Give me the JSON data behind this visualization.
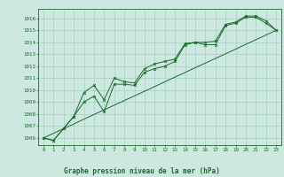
{
  "title": "Graphe pression niveau de la mer (hPa)",
  "background_color": "#cce8e0",
  "grid_color": "#9cc8bc",
  "line_color": "#1a6b2a",
  "x_values": [
    0,
    1,
    2,
    3,
    4,
    5,
    6,
    7,
    8,
    9,
    10,
    11,
    12,
    13,
    14,
    15,
    16,
    17,
    18,
    19,
    20,
    21,
    22,
    23
  ],
  "series1": [
    1006.0,
    1005.8,
    1006.8,
    1007.8,
    1009.8,
    1010.4,
    1009.2,
    1011.0,
    1010.7,
    1010.6,
    1011.8,
    1012.2,
    1012.4,
    1012.6,
    1013.9,
    1014.0,
    1014.0,
    1014.1,
    1015.5,
    1015.7,
    1016.2,
    1016.2,
    1015.8,
    1015.0
  ],
  "series2": [
    1006.0,
    1005.8,
    1006.8,
    1007.8,
    1009.0,
    1009.5,
    1008.2,
    1010.5,
    1010.5,
    1010.4,
    1011.5,
    1011.8,
    1012.0,
    1012.4,
    1013.8,
    1014.0,
    1013.8,
    1013.8,
    1015.4,
    1015.6,
    1016.1,
    1016.1,
    1015.6,
    1015.0
  ],
  "series_linear": [
    1006.0,
    1006.39,
    1006.78,
    1007.17,
    1007.57,
    1007.96,
    1008.35,
    1008.74,
    1009.13,
    1009.52,
    1009.91,
    1010.3,
    1010.7,
    1011.09,
    1011.48,
    1011.87,
    1012.26,
    1012.65,
    1013.04,
    1013.43,
    1013.83,
    1014.22,
    1014.61,
    1015.0
  ],
  "ylim": [
    1005.4,
    1016.8
  ],
  "xlim": [
    -0.5,
    23.5
  ],
  "yticks": [
    1006,
    1007,
    1008,
    1009,
    1010,
    1011,
    1012,
    1013,
    1014,
    1015,
    1016
  ],
  "xticks": [
    0,
    1,
    2,
    3,
    4,
    5,
    6,
    7,
    8,
    9,
    10,
    11,
    12,
    13,
    14,
    15,
    16,
    17,
    18,
    19,
    20,
    21,
    22,
    23
  ]
}
